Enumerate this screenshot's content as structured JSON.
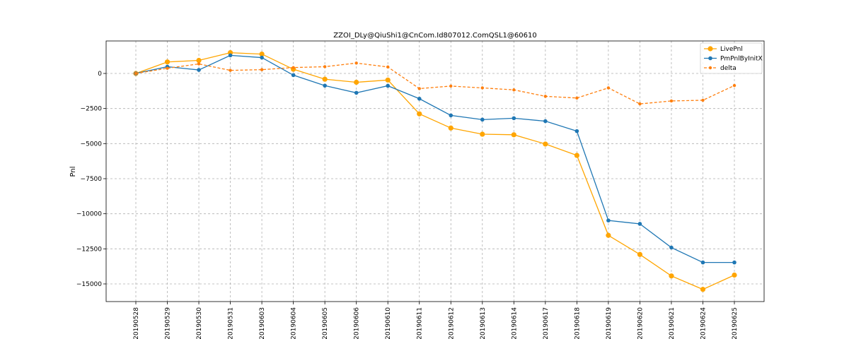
{
  "chart_data": {
    "type": "line",
    "title": "ZZOI_DLy@QiuShi1@CnCom.Id807012.ComQSL1@60610",
    "xlabel": "",
    "ylabel": "Pnl",
    "categories": [
      "20190528",
      "20190529",
      "20190530",
      "20190531",
      "20190603",
      "20190604",
      "20190605",
      "20190606",
      "20190610",
      "20190611",
      "20190612",
      "20190613",
      "20190614",
      "20190617",
      "20190618",
      "20190619",
      "20190620",
      "20190621",
      "20190624",
      "20190625"
    ],
    "ylim": [
      -16250,
      2300
    ],
    "yticks": [
      0,
      -2500,
      -5000,
      -7500,
      -10000,
      -12500,
      -15000
    ],
    "ytick_labels": [
      "0",
      "−2500",
      "−5000",
      "−7500",
      "−10000",
      "−12500",
      "−15000"
    ],
    "grid": true,
    "legend_position": "top-right",
    "series": [
      {
        "name": "LivePnl",
        "color": "#FFA500",
        "style": "solid",
        "marker": "large-circle",
        "values": [
          0,
          820,
          930,
          1480,
          1380,
          300,
          -410,
          -630,
          -470,
          -2880,
          -3890,
          -4330,
          -4370,
          -5030,
          -5840,
          -11540,
          -12900,
          -14430,
          -15390,
          -14370
        ]
      },
      {
        "name": "PmPnlByInitX",
        "color": "#1F77B4",
        "style": "solid",
        "marker": "circle",
        "values": [
          0,
          480,
          250,
          1290,
          1130,
          -120,
          -870,
          -1380,
          -880,
          -1800,
          -2990,
          -3290,
          -3190,
          -3400,
          -4110,
          -10480,
          -10720,
          -12410,
          -13470,
          -13470
        ]
      },
      {
        "name": "delta",
        "color": "#FF7F0E",
        "style": "dashed",
        "marker": "small-circle",
        "values": [
          0,
          370,
          680,
          220,
          270,
          420,
          480,
          740,
          460,
          -1080,
          -900,
          -1030,
          -1170,
          -1630,
          -1750,
          -1030,
          -2170,
          -1960,
          -1910,
          -860
        ]
      }
    ]
  }
}
